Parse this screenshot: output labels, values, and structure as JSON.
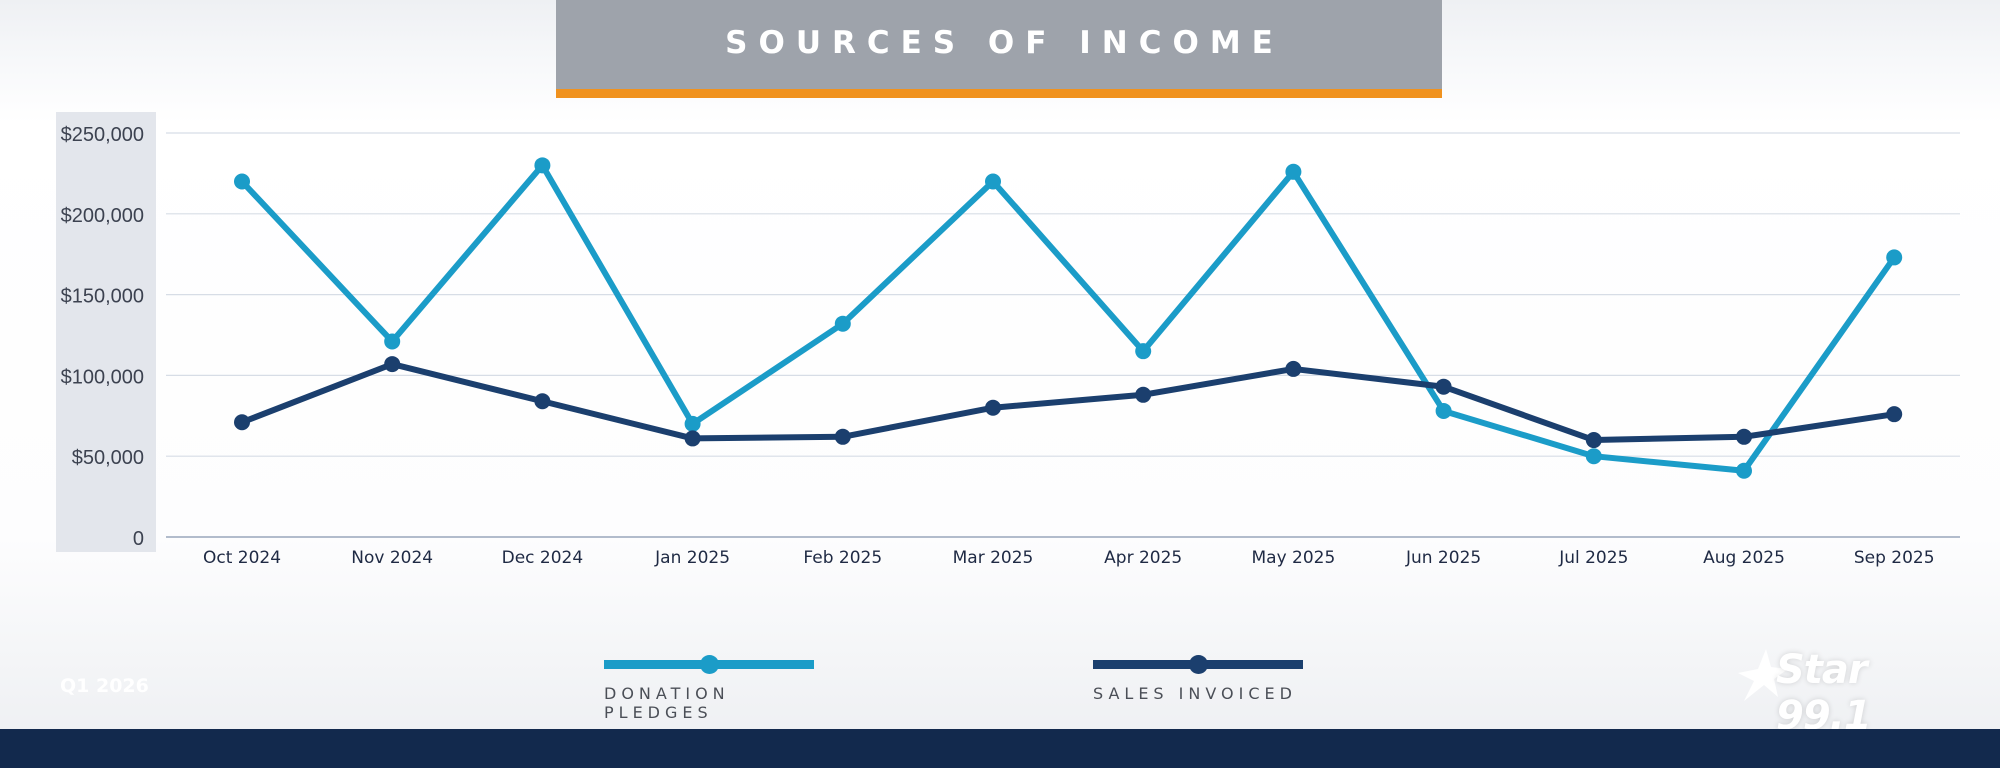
{
  "header": {
    "title": "SOURCES OF INCOME"
  },
  "footer": {
    "quarter": "Q1 2026",
    "logo_text": "Star 99.1"
  },
  "colors": {
    "donation": "#1b9cc8",
    "sales": "#1b3f6e",
    "accent": "#f0921e",
    "title_bar": "#9ea3ab",
    "footer": "#12294d"
  },
  "chart_data": {
    "type": "line",
    "title": "SOURCES OF INCOME",
    "xlabel": "",
    "ylabel": "",
    "categories": [
      "Oct 2024",
      "Nov 2024",
      "Dec 2024",
      "Jan 2025",
      "Feb 2025",
      "Mar 2025",
      "Apr 2025",
      "May 2025",
      "Jun 2025",
      "Jul 2025",
      "Aug 2025",
      "Sep 2025"
    ],
    "ylim": [
      0,
      250000
    ],
    "yticks": [
      0,
      50000,
      100000,
      150000,
      200000,
      250000
    ],
    "ytick_labels": [
      "0",
      "$50,000",
      "$100,000",
      "$150,000",
      "$200,000",
      "$250,000"
    ],
    "grid": true,
    "legend_position": "bottom",
    "series": [
      {
        "name": "DONATION PLEDGES",
        "color": "#1b9cc8",
        "values": [
          220000,
          121000,
          230000,
          70000,
          132000,
          220000,
          115000,
          226000,
          78000,
          50000,
          41000,
          173000
        ]
      },
      {
        "name": "SALES INVOICED",
        "color": "#1b3f6e",
        "values": [
          71000,
          107000,
          84000,
          61000,
          62000,
          80000,
          88000,
          104000,
          93000,
          60000,
          62000,
          76000
        ]
      }
    ]
  }
}
